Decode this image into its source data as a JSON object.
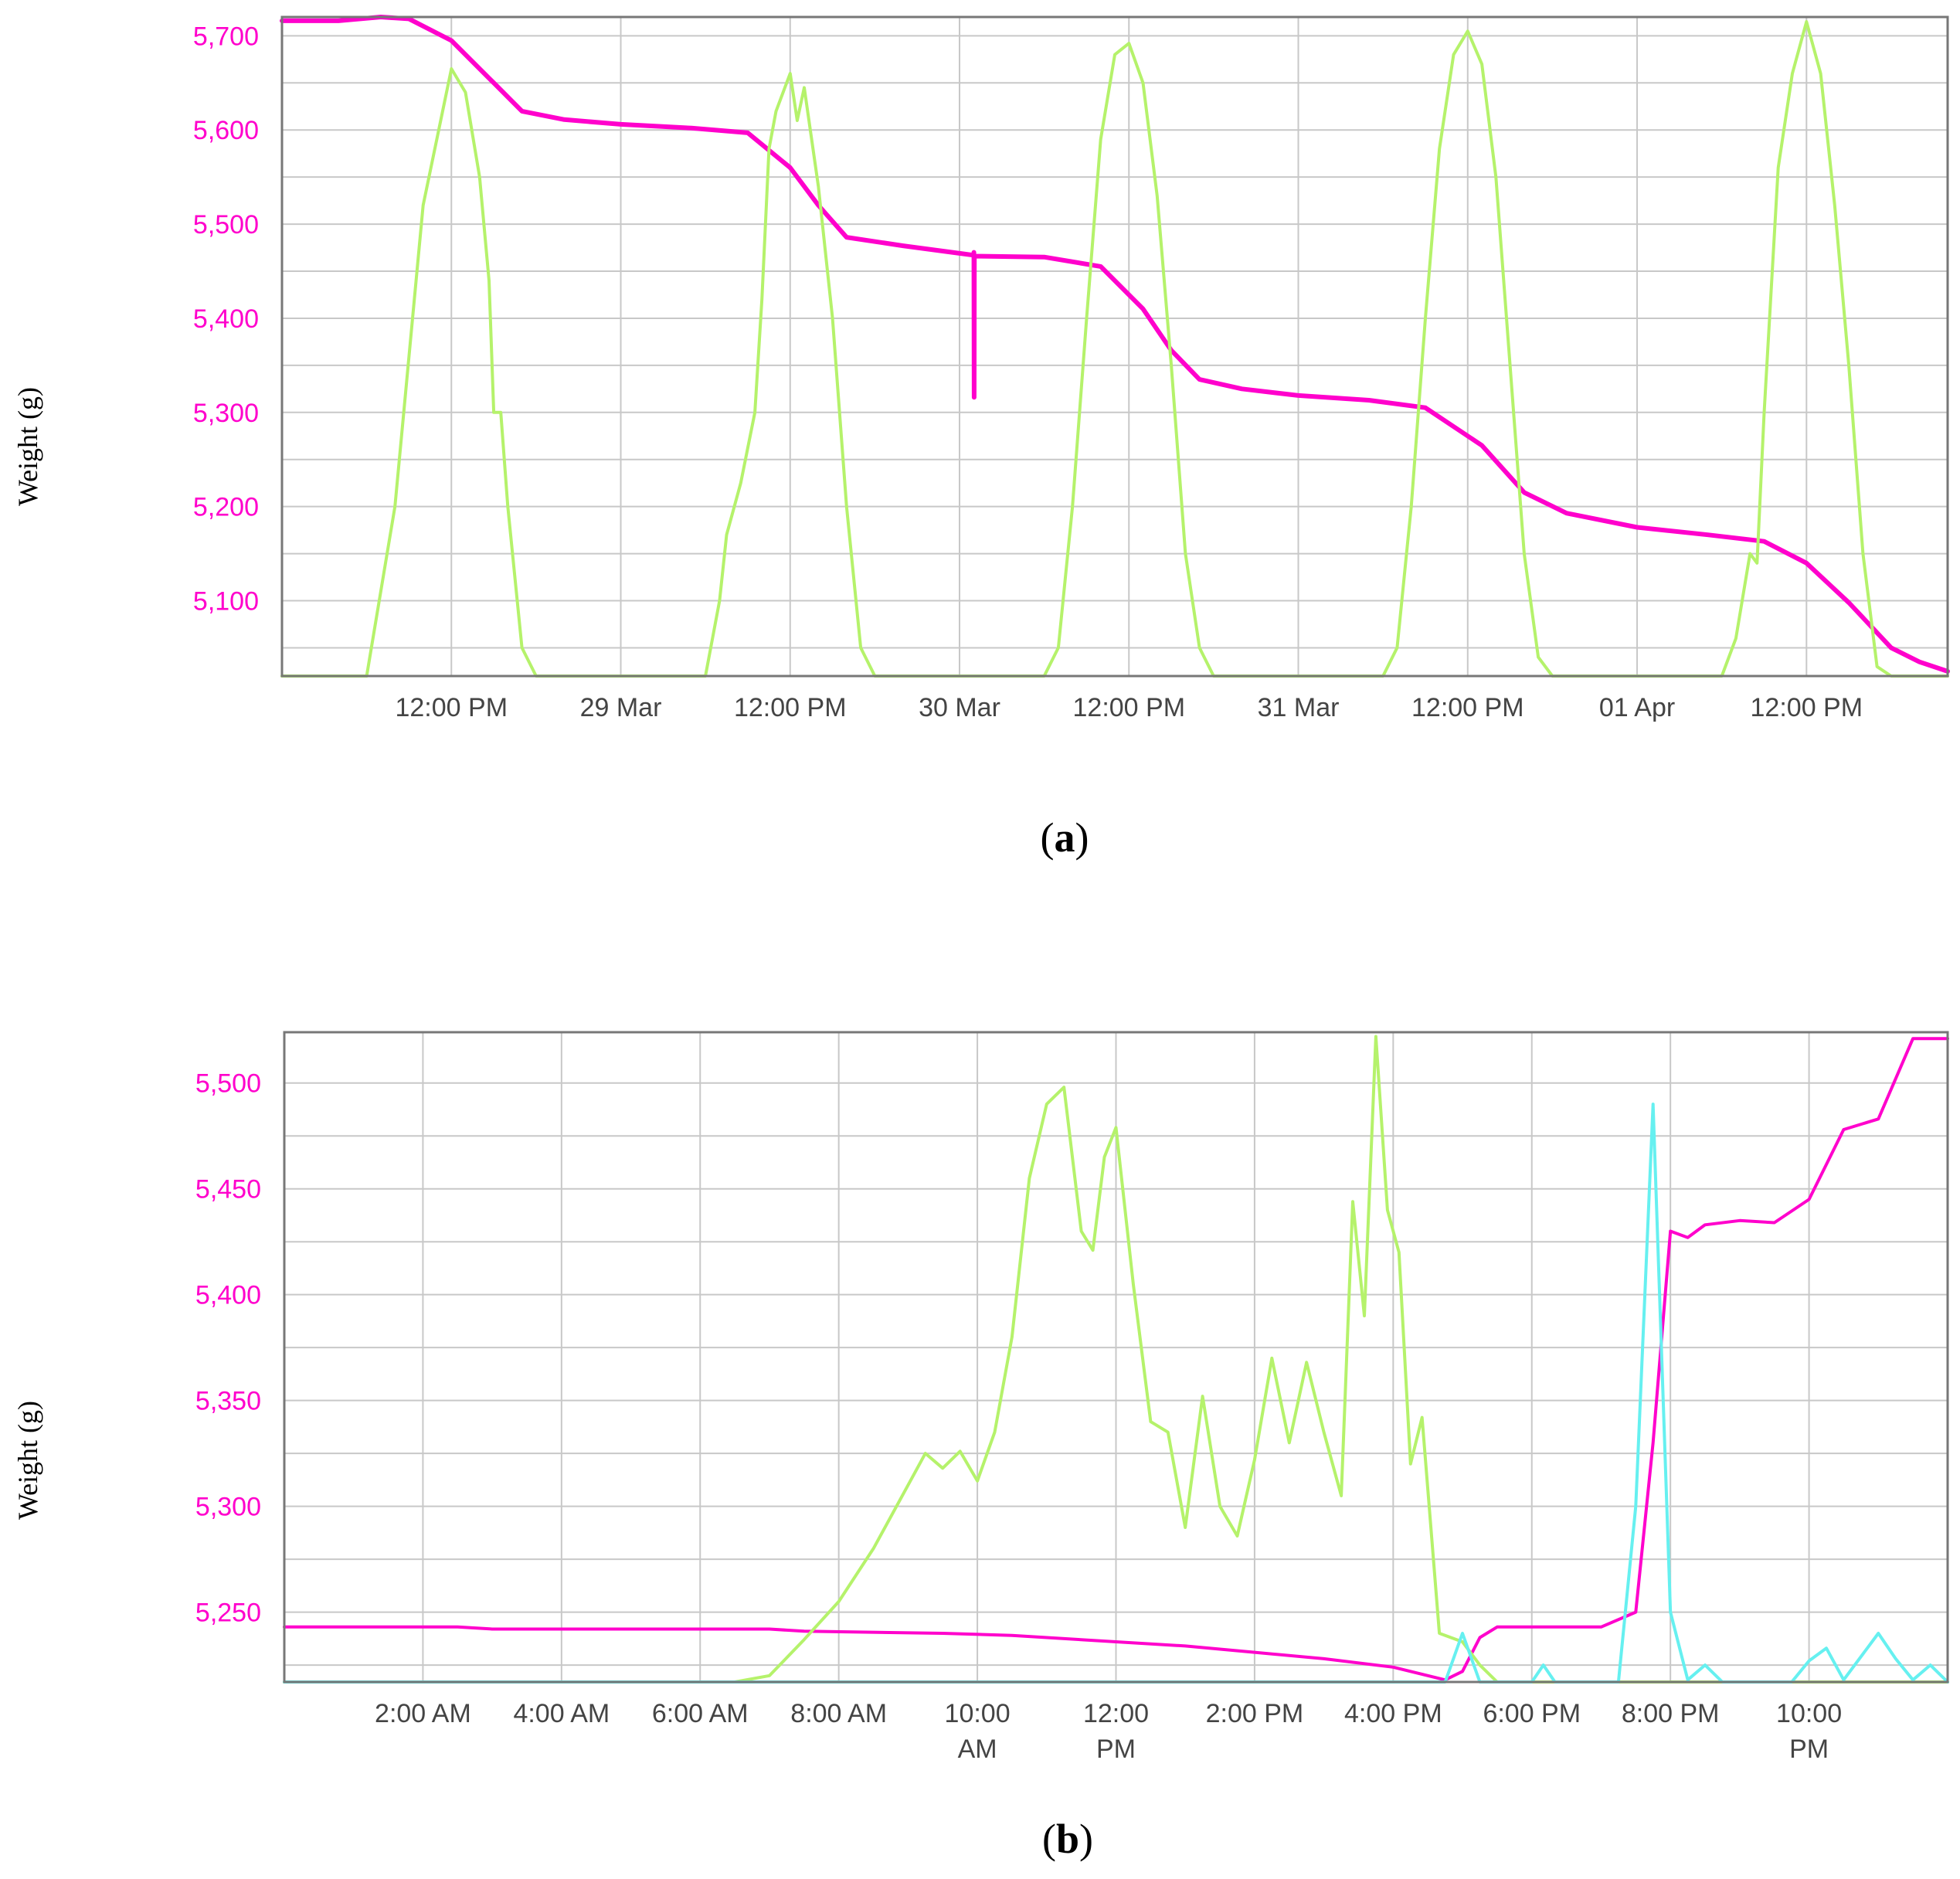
{
  "chart_data": [
    {
      "panel": "a",
      "type": "line",
      "caption": "(a)",
      "ylabel": "Weight (g)",
      "ylim": [
        5020,
        5720
      ],
      "yticks": [
        5100,
        5200,
        5300,
        5400,
        5500,
        5600,
        5700
      ],
      "ytick_labels": [
        "5,100",
        "5,200",
        "5,300",
        "5,400",
        "5,500",
        "5,600",
        "5,700"
      ],
      "xlim": [
        "2024-03-28T00:00",
        "2024-04-01T22:00"
      ],
      "xticks": [
        {
          "t": "2024-03-28T12:00",
          "label": "12:00 PM"
        },
        {
          "t": "2024-03-29T00:00",
          "label": "29 Mar"
        },
        {
          "t": "2024-03-29T12:00",
          "label": "12:00 PM"
        },
        {
          "t": "2024-03-30T00:00",
          "label": "30 Mar"
        },
        {
          "t": "2024-03-30T12:00",
          "label": "12:00 PM"
        },
        {
          "t": "2024-03-31T00:00",
          "label": "31 Mar"
        },
        {
          "t": "2024-03-31T12:00",
          "label": "12:00 PM"
        },
        {
          "t": "2024-04-01T00:00",
          "label": "01 Apr"
        },
        {
          "t": "2024-04-01T12:00",
          "label": "12:00 PM"
        }
      ],
      "grid": true,
      "series": [
        {
          "color": "#ff00cc",
          "width": 6,
          "points": [
            [
              "2024-03-28T00:00",
              5716
            ],
            [
              "2024-03-28T04:00",
              5716
            ],
            [
              "2024-03-28T07:00",
              5720
            ],
            [
              "2024-03-28T09:00",
              5718
            ],
            [
              "2024-03-28T12:00",
              5695
            ],
            [
              "2024-03-28T15:00",
              5650
            ],
            [
              "2024-03-28T17:00",
              5620
            ],
            [
              "2024-03-28T20:00",
              5611
            ],
            [
              "2024-03-29T00:00",
              5606
            ],
            [
              "2024-03-29T05:00",
              5602
            ],
            [
              "2024-03-29T09:00",
              5597
            ],
            [
              "2024-03-29T12:00",
              5560
            ],
            [
              "2024-03-29T14:00",
              5520
            ],
            [
              "2024-03-29T16:00",
              5486
            ],
            [
              "2024-03-29T20:00",
              5477
            ],
            [
              "2024-03-30T00:00",
              5469
            ],
            [
              "2024-03-30T01:00",
              5467
            ],
            [
              "2024-03-30T01:01",
              5470
            ],
            [
              "2024-03-30T01:02",
              5316
            ],
            [
              "2024-03-30T01:03",
              5466
            ],
            [
              "2024-03-30T06:00",
              5465
            ],
            [
              "2024-03-30T10:00",
              5455
            ],
            [
              "2024-03-30T13:00",
              5410
            ],
            [
              "2024-03-30T15:00",
              5366
            ],
            [
              "2024-03-30T17:00",
              5335
            ],
            [
              "2024-03-30T20:00",
              5325
            ],
            [
              "2024-03-31T00:00",
              5318
            ],
            [
              "2024-03-31T05:00",
              5313
            ],
            [
              "2024-03-31T09:00",
              5305
            ],
            [
              "2024-03-31T13:00",
              5265
            ],
            [
              "2024-03-31T16:00",
              5215
            ],
            [
              "2024-03-31T19:00",
              5193
            ],
            [
              "2024-04-01T00:00",
              5178
            ],
            [
              "2024-04-01T05:00",
              5170
            ],
            [
              "2024-04-01T09:00",
              5163
            ],
            [
              "2024-04-01T12:00",
              5140
            ],
            [
              "2024-04-01T15:00",
              5098
            ],
            [
              "2024-04-01T18:00",
              5050
            ],
            [
              "2024-04-01T20:00",
              5035
            ],
            [
              "2024-04-01T22:00",
              5025
            ]
          ]
        },
        {
          "color": "#b5f26b",
          "width": 4,
          "points": [
            [
              "2024-03-28T00:00",
              5020
            ],
            [
              "2024-03-28T06:00",
              5020
            ],
            [
              "2024-03-28T08:00",
              5200
            ],
            [
              "2024-03-28T10:00",
              5520
            ],
            [
              "2024-03-28T12:00",
              5665
            ],
            [
              "2024-03-28T13:00",
              5640
            ],
            [
              "2024-03-28T14:00",
              5550
            ],
            [
              "2024-03-28T14:40",
              5440
            ],
            [
              "2024-03-28T15:00",
              5300
            ],
            [
              "2024-03-28T15:30",
              5300
            ],
            [
              "2024-03-28T16:00",
              5200
            ],
            [
              "2024-03-28T17:00",
              5050
            ],
            [
              "2024-03-28T18:00",
              5020
            ],
            [
              "2024-03-29T06:00",
              5020
            ],
            [
              "2024-03-29T07:00",
              5100
            ],
            [
              "2024-03-29T07:30",
              5170
            ],
            [
              "2024-03-29T08:30",
              5225
            ],
            [
              "2024-03-29T09:30",
              5300
            ],
            [
              "2024-03-29T10:00",
              5420
            ],
            [
              "2024-03-29T10:30",
              5580
            ],
            [
              "2024-03-29T11:00",
              5620
            ],
            [
              "2024-03-29T12:00",
              5660
            ],
            [
              "2024-03-29T12:30",
              5610
            ],
            [
              "2024-03-29T13:00",
              5645
            ],
            [
              "2024-03-29T14:00",
              5540
            ],
            [
              "2024-03-29T15:00",
              5400
            ],
            [
              "2024-03-29T16:00",
              5200
            ],
            [
              "2024-03-29T17:00",
              5050
            ],
            [
              "2024-03-29T18:00",
              5020
            ],
            [
              "2024-03-30T06:00",
              5020
            ],
            [
              "2024-03-30T07:00",
              5050
            ],
            [
              "2024-03-30T08:00",
              5200
            ],
            [
              "2024-03-30T09:00",
              5400
            ],
            [
              "2024-03-30T10:00",
              5590
            ],
            [
              "2024-03-30T11:00",
              5680
            ],
            [
              "2024-03-30T12:00",
              5692
            ],
            [
              "2024-03-30T13:00",
              5650
            ],
            [
              "2024-03-30T14:00",
              5530
            ],
            [
              "2024-03-30T15:00",
              5350
            ],
            [
              "2024-03-30T16:00",
              5150
            ],
            [
              "2024-03-30T17:00",
              5050
            ],
            [
              "2024-03-30T18:00",
              5020
            ],
            [
              "2024-03-31T06:00",
              5020
            ],
            [
              "2024-03-31T07:00",
              5050
            ],
            [
              "2024-03-31T08:00",
              5200
            ],
            [
              "2024-03-31T09:00",
              5400
            ],
            [
              "2024-03-31T10:00",
              5580
            ],
            [
              "2024-03-31T11:00",
              5680
            ],
            [
              "2024-03-31T12:00",
              5705
            ],
            [
              "2024-03-31T13:00",
              5670
            ],
            [
              "2024-03-31T14:00",
              5550
            ],
            [
              "2024-03-31T15:00",
              5350
            ],
            [
              "2024-03-31T16:00",
              5150
            ],
            [
              "2024-03-31T17:00",
              5040
            ],
            [
              "2024-03-31T18:00",
              5020
            ],
            [
              "2024-04-01T06:00",
              5020
            ],
            [
              "2024-04-01T07:00",
              5060
            ],
            [
              "2024-04-01T08:00",
              5150
            ],
            [
              "2024-04-01T08:30",
              5140
            ],
            [
              "2024-04-01T09:00",
              5300
            ],
            [
              "2024-04-01T10:00",
              5560
            ],
            [
              "2024-04-01T11:00",
              5660
            ],
            [
              "2024-04-01T12:00",
              5715
            ],
            [
              "2024-04-01T13:00",
              5660
            ],
            [
              "2024-04-01T14:00",
              5520
            ],
            [
              "2024-04-01T15:00",
              5350
            ],
            [
              "2024-04-01T16:00",
              5150
            ],
            [
              "2024-04-01T17:00",
              5030
            ],
            [
              "2024-04-01T18:00",
              5020
            ],
            [
              "2024-04-01T22:00",
              5020
            ]
          ]
        }
      ]
    },
    {
      "panel": "b",
      "type": "line",
      "caption": "(b)",
      "ylabel": "Weight (g)",
      "ylim": [
        5217,
        5524
      ],
      "yticks": [
        5250,
        5300,
        5350,
        5400,
        5450,
        5500
      ],
      "ytick_labels": [
        "5,250",
        "5,300",
        "5,350",
        "5,400",
        "5,450",
        "5,500"
      ],
      "xlim": [
        "00:00",
        "24:00"
      ],
      "xticks": [
        {
          "t": "02:00",
          "label": "2:00 AM"
        },
        {
          "t": "04:00",
          "label": "4:00 AM"
        },
        {
          "t": "06:00",
          "label": "6:00 AM"
        },
        {
          "t": "08:00",
          "label": "8:00 AM"
        },
        {
          "t": "10:00",
          "label": "10:00 AM"
        },
        {
          "t": "12:00",
          "label": "12:00 PM"
        },
        {
          "t": "14:00",
          "label": "2:00 PM"
        },
        {
          "t": "16:00",
          "label": "4:00 PM"
        },
        {
          "t": "18:00",
          "label": "6:00 PM"
        },
        {
          "t": "20:00",
          "label": "8:00 PM"
        },
        {
          "t": "22:00",
          "label": "10:00 PM"
        }
      ],
      "grid": true,
      "series": [
        {
          "color": "#ff00cc",
          "width": 4,
          "points": [
            [
              "00:00",
              5243
            ],
            [
              "00:30",
              5243
            ],
            [
              "02:30",
              5243
            ],
            [
              "03:00",
              5242
            ],
            [
              "07:00",
              5242
            ],
            [
              "07:30",
              5241
            ],
            [
              "09:30",
              5240
            ],
            [
              "10:30",
              5239
            ],
            [
              "12:00",
              5236
            ],
            [
              "13:00",
              5234
            ],
            [
              "14:00",
              5231
            ],
            [
              "15:00",
              5228
            ],
            [
              "16:00",
              5224
            ],
            [
              "16:30",
              5220
            ],
            [
              "16:45",
              5218
            ],
            [
              "17:00",
              5222
            ],
            [
              "17:15",
              5238
            ],
            [
              "17:30",
              5243
            ],
            [
              "18:00",
              5243
            ],
            [
              "19:00",
              5243
            ],
            [
              "19:30",
              5250
            ],
            [
              "19:45",
              5330
            ],
            [
              "20:00",
              5430
            ],
            [
              "20:15",
              5427
            ],
            [
              "20:30",
              5433
            ],
            [
              "21:00",
              5435
            ],
            [
              "21:30",
              5434
            ],
            [
              "22:00",
              5445
            ],
            [
              "22:30",
              5478
            ],
            [
              "23:00",
              5483
            ],
            [
              "23:30",
              5521
            ],
            [
              "24:00",
              5521
            ]
          ]
        },
        {
          "color": "#b5f26b",
          "width": 4,
          "points": [
            [
              "00:00",
              5217
            ],
            [
              "06:30",
              5217
            ],
            [
              "07:00",
              5220
            ],
            [
              "07:30",
              5237
            ],
            [
              "08:00",
              5255
            ],
            [
              "08:30",
              5280
            ],
            [
              "09:00",
              5310
            ],
            [
              "09:15",
              5325
            ],
            [
              "09:30",
              5318
            ],
            [
              "09:45",
              5326
            ],
            [
              "10:00",
              5312
            ],
            [
              "10:15",
              5335
            ],
            [
              "10:30",
              5380
            ],
            [
              "10:45",
              5455
            ],
            [
              "11:00",
              5490
            ],
            [
              "11:15",
              5498
            ],
            [
              "11:30",
              5430
            ],
            [
              "11:40",
              5421
            ],
            [
              "11:50",
              5465
            ],
            [
              "12:00",
              5479
            ],
            [
              "12:15",
              5405
            ],
            [
              "12:30",
              5340
            ],
            [
              "12:45",
              5335
            ],
            [
              "13:00",
              5290
            ],
            [
              "13:15",
              5352
            ],
            [
              "13:30",
              5300
            ],
            [
              "13:45",
              5286
            ],
            [
              "14:00",
              5322
            ],
            [
              "14:15",
              5370
            ],
            [
              "14:30",
              5330
            ],
            [
              "14:45",
              5368
            ],
            [
              "15:00",
              5335
            ],
            [
              "15:15",
              5305
            ],
            [
              "15:25",
              5444
            ],
            [
              "15:35",
              5390
            ],
            [
              "15:45",
              5522
            ],
            [
              "15:55",
              5440
            ],
            [
              "16:05",
              5420
            ],
            [
              "16:15",
              5320
            ],
            [
              "16:25",
              5342
            ],
            [
              "16:40",
              5240
            ],
            [
              "17:00",
              5236
            ],
            [
              "17:15",
              5225
            ],
            [
              "17:30",
              5217
            ],
            [
              "24:00",
              5217
            ]
          ]
        },
        {
          "color": "#66f0f0",
          "width": 4,
          "points": [
            [
              "00:00",
              5217
            ],
            [
              "16:45",
              5217
            ],
            [
              "17:00",
              5240
            ],
            [
              "17:15",
              5217
            ],
            [
              "18:00",
              5217
            ],
            [
              "18:10",
              5225
            ],
            [
              "18:20",
              5217
            ],
            [
              "19:15",
              5217
            ],
            [
              "19:30",
              5300
            ],
            [
              "19:45",
              5490
            ],
            [
              "20:00",
              5250
            ],
            [
              "20:15",
              5218
            ],
            [
              "20:30",
              5225
            ],
            [
              "20:45",
              5217
            ],
            [
              "21:45",
              5217
            ],
            [
              "22:00",
              5227
            ],
            [
              "22:15",
              5233
            ],
            [
              "22:30",
              5218
            ],
            [
              "23:00",
              5240
            ],
            [
              "23:15",
              5228
            ],
            [
              "23:30",
              5218
            ],
            [
              "23:45",
              5225
            ],
            [
              "24:00",
              5217
            ]
          ]
        }
      ]
    }
  ]
}
